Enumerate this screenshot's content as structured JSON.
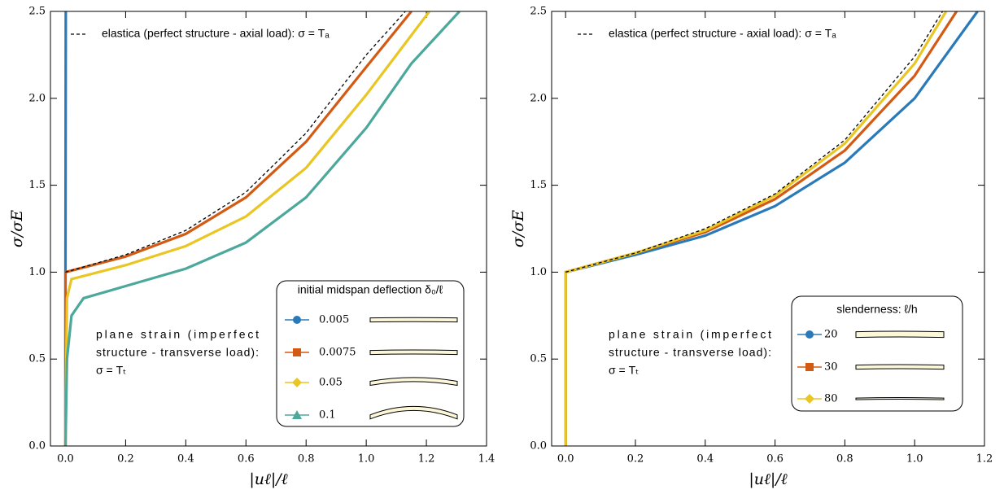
{
  "chart_data": [
    {
      "type": "line",
      "xlabel": "|uℓ|/ℓ",
      "ylabel": "σ/σE",
      "xlim": [
        -0.05,
        1.4
      ],
      "ylim": [
        0,
        2.5
      ],
      "xticks": [
        {
          "value": 0,
          "label": "0.0"
        },
        0.2,
        0.4,
        0.6,
        0.8,
        {
          "value": 1,
          "label": "1.0"
        },
        1.2,
        1.4
      ],
      "yticks": [
        {
          "value": 0,
          "label": "0.0"
        },
        0.5,
        {
          "value": 1,
          "label": "1.0"
        },
        1.5,
        {
          "value": 2,
          "label": "2.0"
        },
        2.5
      ],
      "legend_title": "initial midspan deflection δ₀/ℓ",
      "legend_loc": "lower right",
      "annotation": [
        "plane strain (imperfect",
        "structure - transverse load):",
        "σ = Tₜ"
      ],
      "series": [
        {
          "name": "elastica (perfect structure - axial load): σ = Tₐ",
          "color": "#000000",
          "linestyle": "dashed",
          "x": [
            0,
            0.2,
            0.4,
            0.6,
            0.8,
            1.0,
            1.13
          ],
          "values": [
            1,
            1.1,
            1.24,
            1.46,
            1.8,
            2.25,
            2.5
          ]
        },
        {
          "name": "0.005",
          "color": "#2a7ab9",
          "marker": "circle",
          "x": [
            0,
            0,
            0.001
          ],
          "values": [
            0,
            1,
            2.5
          ]
        },
        {
          "name": "0.0075",
          "color": "#d35a12",
          "marker": "square",
          "x": [
            0,
            0,
            0.2,
            0.4,
            0.6,
            0.8,
            1.0,
            1.15
          ],
          "values": [
            0,
            1.0,
            1.09,
            1.22,
            1.43,
            1.75,
            2.18,
            2.5
          ]
        },
        {
          "name": "0.05",
          "color": "#e9c623",
          "marker": "diamond",
          "x": [
            0,
            0.005,
            0.02,
            0.2,
            0.4,
            0.6,
            0.8,
            1.0,
            1.21
          ],
          "values": [
            0,
            0.85,
            0.96,
            1.04,
            1.15,
            1.32,
            1.6,
            2.02,
            2.5
          ]
        },
        {
          "name": "0.1",
          "color": "#4ba89b",
          "marker": "triangle",
          "x": [
            0,
            0.005,
            0.02,
            0.06,
            0.2,
            0.4,
            0.6,
            0.8,
            1.0,
            1.15,
            1.31
          ],
          "values": [
            0,
            0.5,
            0.75,
            0.85,
            0.92,
            1.02,
            1.17,
            1.43,
            1.83,
            2.2,
            2.5
          ]
        }
      ]
    },
    {
      "type": "line",
      "xlabel": "|uℓ|/ℓ",
      "ylabel": "σ/σE",
      "xlim": [
        -0.04,
        1.2
      ],
      "ylim": [
        0,
        2.5
      ],
      "xticks": [
        {
          "value": 0,
          "label": "0.0"
        },
        0.2,
        0.4,
        0.6,
        0.8,
        {
          "value": 1,
          "label": "1.0"
        },
        1.2
      ],
      "yticks": [
        {
          "value": 0,
          "label": "0.0"
        },
        0.5,
        {
          "value": 1,
          "label": "1.0"
        },
        1.5,
        {
          "value": 2,
          "label": "2.0"
        },
        2.5
      ],
      "legend_title": "slenderness: ℓ/h",
      "legend_loc": "lower right",
      "annotation": [
        "plane strain (imperfect",
        "structure - transverse load):",
        "σ = Tₜ"
      ],
      "series": [
        {
          "name": "elastica (perfect structure - axial load): σ = Tₐ",
          "color": "#000000",
          "linestyle": "dashed",
          "x": [
            0,
            0.2,
            0.4,
            0.6,
            0.8,
            1.0,
            1.08
          ],
          "values": [
            1,
            1.11,
            1.25,
            1.45,
            1.76,
            2.24,
            2.5
          ]
        },
        {
          "name": "20",
          "color": "#2a7ab9",
          "marker": "circle",
          "x": [
            0,
            0,
            0.2,
            0.4,
            0.6,
            0.8,
            1.0,
            1.18
          ],
          "values": [
            0,
            1,
            1.1,
            1.21,
            1.38,
            1.63,
            2.0,
            2.5
          ]
        },
        {
          "name": "30",
          "color": "#d35a12",
          "marker": "square",
          "x": [
            0,
            0,
            0.2,
            0.4,
            0.6,
            0.8,
            1.0,
            1.12
          ],
          "values": [
            0,
            1,
            1.11,
            1.23,
            1.42,
            1.7,
            2.13,
            2.5
          ]
        },
        {
          "name": "80",
          "color": "#e9c623",
          "marker": "diamond",
          "x": [
            0,
            0,
            0.2,
            0.4,
            0.6,
            0.8,
            1.0,
            1.09
          ],
          "values": [
            0,
            1,
            1.11,
            1.24,
            1.44,
            1.74,
            2.2,
            2.5
          ]
        }
      ]
    }
  ]
}
